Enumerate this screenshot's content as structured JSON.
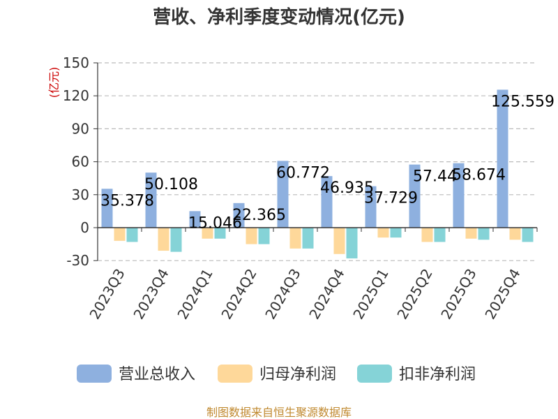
{
  "chart_data": {
    "type": "bar",
    "title": "营收、净利季度变动情况(亿元)",
    "unit_label": "(亿元)",
    "categories": [
      "2023Q3",
      "2023Q4",
      "2024Q1",
      "2024Q2",
      "2024Q3",
      "2024Q4",
      "2025Q1",
      "2025Q2",
      "2025Q3",
      "2025Q4"
    ],
    "series": [
      {
        "name": "营业总收入",
        "color": "#8eb0df",
        "values": [
          35.378,
          50.108,
          15.046,
          22.365,
          60.772,
          46.935,
          37.729,
          57.44,
          58.674,
          125.559
        ],
        "labels": [
          "35.378",
          "50.108",
          "15.046",
          "22.365",
          "60.772",
          "46.935",
          "37.729",
          "57.44",
          "58.674",
          "125.559"
        ]
      },
      {
        "name": "归母净利润",
        "color": "#fed89a",
        "values": [
          -12,
          -21,
          -10,
          -15,
          -19,
          -24,
          -9,
          -13,
          -10,
          -11
        ]
      },
      {
        "name": "扣非净利润",
        "color": "#85d3d7",
        "values": [
          -13,
          -22,
          -10,
          -15,
          -19,
          -28,
          -9,
          -13,
          -11,
          -13
        ]
      }
    ],
    "ylim": [
      -30,
      150
    ],
    "yticks": [
      -30,
      0,
      30,
      60,
      90,
      120,
      150
    ],
    "ytick_labels": [
      "-30",
      "0",
      "30",
      "60",
      "90",
      "120",
      "150"
    ],
    "grid": true,
    "legend_position": "bottom"
  },
  "footer": {
    "source": "制图数据来自恒生聚源数据库"
  }
}
